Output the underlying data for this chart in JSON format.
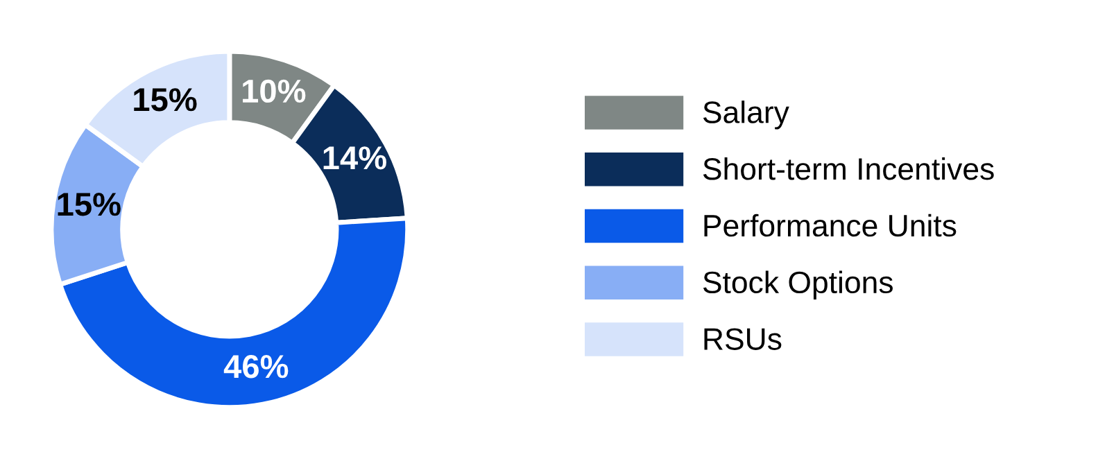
{
  "chart_data": {
    "type": "donut",
    "categories": [
      "Salary",
      "Short-term Incentives",
      "Performance Units",
      "Stock Options",
      "RSUs"
    ],
    "values": [
      10,
      14,
      46,
      15,
      15
    ],
    "colors": [
      "#7f8785",
      "#0b2d5a",
      "#0a5ae8",
      "#88aef5",
      "#d6e3fb"
    ],
    "value_labels": [
      "10%",
      "14%",
      "46%",
      "15%",
      "15%"
    ],
    "legend": "right"
  }
}
